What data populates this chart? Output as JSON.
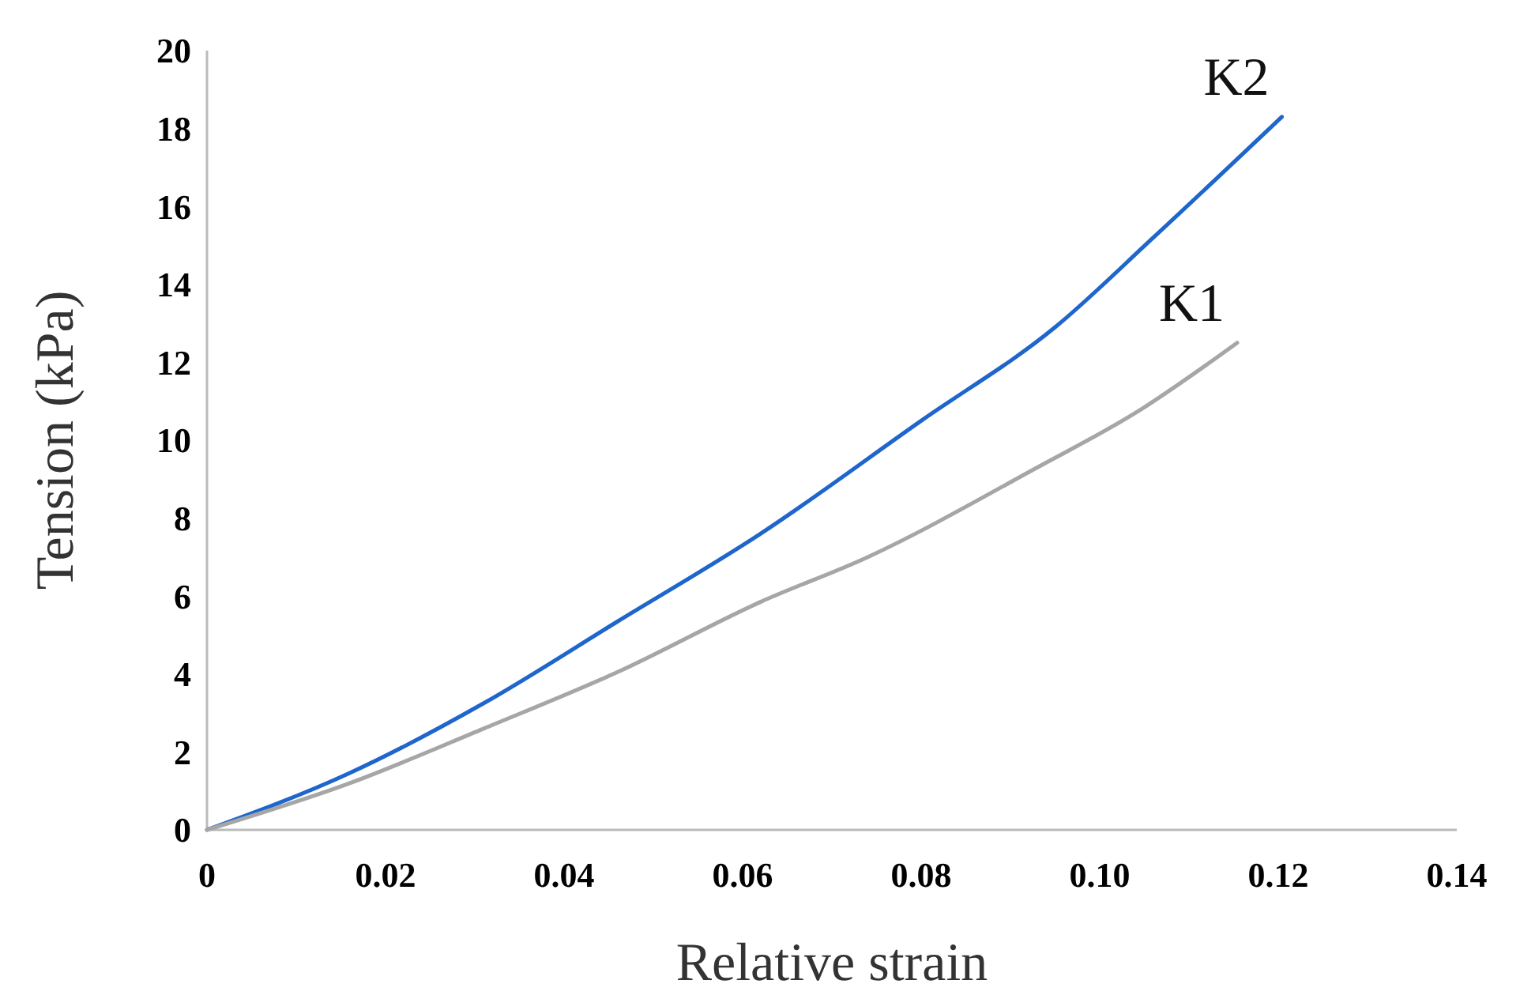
{
  "chart_data": {
    "type": "line",
    "xlabel": "Relative strain",
    "ylabel": "Tension (kPa)",
    "xlim": [
      0,
      0.14
    ],
    "ylim": [
      0,
      20
    ],
    "xticks": [
      0,
      0.02,
      0.04,
      0.06,
      0.08,
      {
        "value": 0.1,
        "label": "0.10"
      },
      0.12,
      0.14
    ],
    "yticks": [
      0,
      2,
      4,
      6,
      8,
      10,
      12,
      14,
      16,
      18,
      20
    ],
    "grid": false,
    "legend": false,
    "marker": "none",
    "line_style": "solid",
    "series": [
      {
        "name": "K2",
        "color": "#1f66cc",
        "x": [
          0,
          0.016,
          0.031,
          0.046,
          0.062,
          0.08,
          0.095,
          0.106,
          0.1204
        ],
        "values": [
          0,
          1.46,
          3.25,
          5.35,
          7.6,
          10.5,
          12.9,
          15.2,
          18.3
        ]
      },
      {
        "name": "K1",
        "color": "#a6a6a6",
        "x": [
          0,
          0.016,
          0.031,
          0.046,
          0.062,
          0.074,
          0.093,
          0.104,
          0.1154
        ],
        "values": [
          0,
          1.2,
          2.6,
          4.05,
          5.85,
          7.0,
          9.3,
          10.7,
          12.5
        ]
      }
    ]
  }
}
